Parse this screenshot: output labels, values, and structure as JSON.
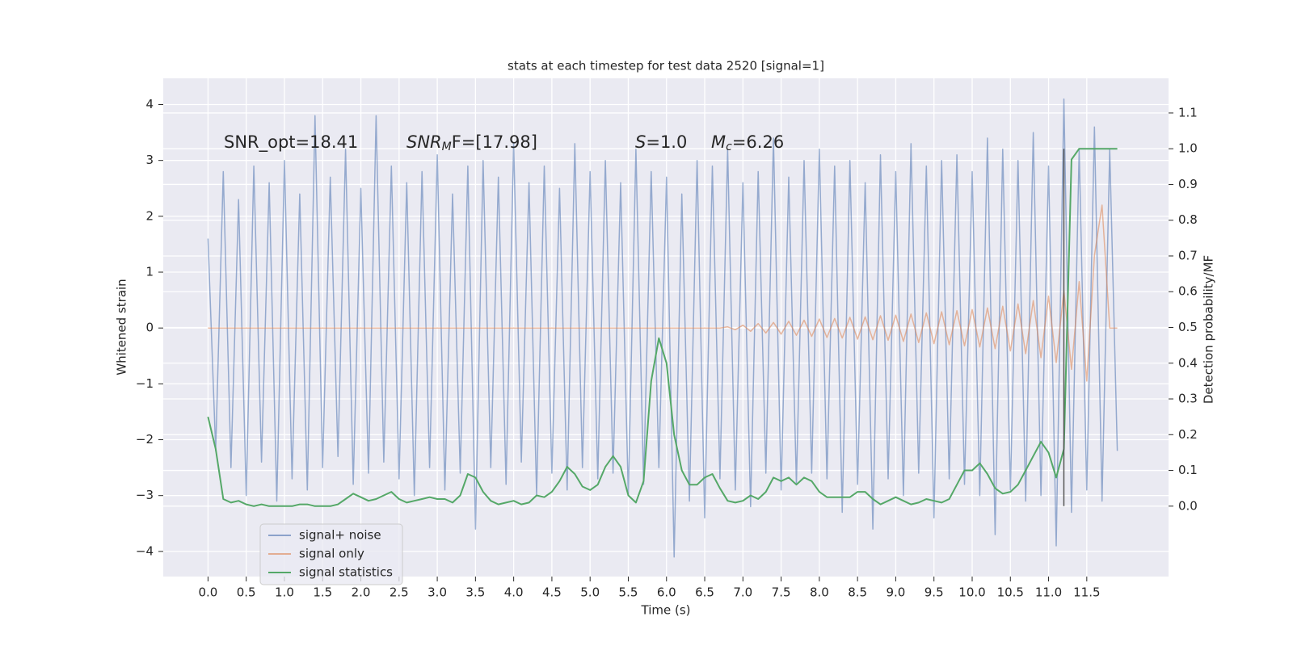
{
  "chart_data": {
    "type": "line",
    "title": "stats at each timestep for test data 2520 [signal=1]",
    "xlabel": "Time (s)",
    "ylabel": "Whitened strain",
    "y2label": "Detection probability/MF",
    "annotations": [
      "SNR_opt=18.41",
      [
        "SNR",
        "M",
        "F=[17.98]"
      ],
      [
        "S",
        "=1.0"
      ],
      [
        "M",
        "c",
        "=6.26"
      ]
    ],
    "xlim": [
      -0.586,
      12.57
    ],
    "ylim": [
      -4.45,
      4.47
    ],
    "y2lim": [
      -0.197,
      1.197
    ],
    "xticks": [
      {
        "value": 0,
        "label": "0.0"
      },
      {
        "value": 0.5,
        "label": "0.5"
      },
      {
        "value": 1,
        "label": "1.0"
      },
      {
        "value": 1.5,
        "label": "1.5"
      },
      {
        "value": 2,
        "label": "2.0"
      },
      {
        "value": 2.5,
        "label": "2.5"
      },
      {
        "value": 3,
        "label": "3.0"
      },
      {
        "value": 3.5,
        "label": "3.5"
      },
      {
        "value": 4,
        "label": "4.0"
      },
      {
        "value": 4.5,
        "label": "4.5"
      },
      {
        "value": 5,
        "label": "5.0"
      },
      {
        "value": 5.5,
        "label": "5.5"
      },
      {
        "value": 6,
        "label": "6.0"
      },
      {
        "value": 6.5,
        "label": "6.5"
      },
      {
        "value": 7,
        "label": "7.0"
      },
      {
        "value": 7.5,
        "label": "7.5"
      },
      {
        "value": 8,
        "label": "8.0"
      },
      {
        "value": 8.5,
        "label": "8.5"
      },
      {
        "value": 9,
        "label": "9.0"
      },
      {
        "value": 9.5,
        "label": "9.5"
      },
      {
        "value": 10,
        "label": "10.0"
      },
      {
        "value": 10.5,
        "label": "10.5"
      },
      {
        "value": 11,
        "label": "11.0"
      },
      {
        "value": 11.5,
        "label": "11.5"
      }
    ],
    "yticks": [
      {
        "value": -4,
        "label": "−4"
      },
      {
        "value": -3,
        "label": "−3"
      },
      {
        "value": -2,
        "label": "−2"
      },
      {
        "value": -1,
        "label": "−1"
      },
      0,
      1,
      2,
      3,
      4
    ],
    "y2ticks": [
      {
        "value": 0,
        "label": "0.0"
      },
      {
        "value": 0.1,
        "label": "0.1"
      },
      {
        "value": 0.2,
        "label": "0.2"
      },
      {
        "value": 0.3,
        "label": "0.3"
      },
      {
        "value": 0.4,
        "label": "0.4"
      },
      {
        "value": 0.5,
        "label": "0.5"
      },
      {
        "value": 0.6,
        "label": "0.6"
      },
      {
        "value": 0.7,
        "label": "0.7"
      },
      {
        "value": 0.8,
        "label": "0.8"
      },
      {
        "value": 0.9,
        "label": "0.9"
      },
      {
        "value": 1,
        "label": "1.0"
      },
      {
        "value": 1.1,
        "label": "1.1"
      }
    ],
    "grid": true,
    "legend": "lower left",
    "vline": {
      "x": 11.2,
      "ymin": 0,
      "ymax": 1,
      "axis": "y2",
      "color": "#555555"
    },
    "x": [
      0,
      0.1,
      0.2,
      0.3,
      0.4,
      0.5,
      0.6,
      0.7,
      0.8,
      0.9,
      1,
      1.1,
      1.2,
      1.3,
      1.4,
      1.5,
      1.6,
      1.7,
      1.8,
      1.9,
      2,
      2.1,
      2.2,
      2.3,
      2.4,
      2.5,
      2.6,
      2.7,
      2.8,
      2.9,
      3,
      3.1,
      3.2,
      3.3,
      3.4,
      3.5,
      3.6,
      3.7,
      3.8,
      3.9,
      4,
      4.1,
      4.2,
      4.3,
      4.4,
      4.5,
      4.6,
      4.7,
      4.8,
      4.9,
      5,
      5.1,
      5.2,
      5.3,
      5.4,
      5.5,
      5.6,
      5.7,
      5.8,
      5.9,
      6,
      6.1,
      6.2,
      6.3,
      6.4,
      6.5,
      6.6,
      6.7,
      6.8,
      6.9,
      7,
      7.1,
      7.2,
      7.3,
      7.4,
      7.5,
      7.6,
      7.7,
      7.8,
      7.9,
      8,
      8.1,
      8.2,
      8.3,
      8.4,
      8.5,
      8.6,
      8.7,
      8.8,
      8.9,
      9,
      9.1,
      9.2,
      9.3,
      9.4,
      9.5,
      9.6,
      9.7,
      9.8,
      9.9,
      10,
      10.1,
      10.2,
      10.3,
      10.4,
      10.5,
      10.6,
      10.7,
      10.8,
      10.9,
      11,
      11.1,
      11.2,
      11.3,
      11.4,
      11.5,
      11.6,
      11.7,
      11.8,
      11.9
    ],
    "series": [
      {
        "name": "signal+ noise",
        "color": "#4c72b0",
        "values": [
          1.6,
          -2.2,
          2.8,
          -2.5,
          2.3,
          -3.0,
          2.9,
          -2.4,
          2.6,
          -3.1,
          3.0,
          -2.7,
          2.4,
          -2.9,
          3.8,
          -2.5,
          2.7,
          -2.3,
          3.2,
          -2.8,
          2.5,
          -2.6,
          3.8,
          -2.4,
          2.9,
          -2.7,
          2.6,
          -3.0,
          2.8,
          -2.5,
          3.1,
          -2.9,
          2.4,
          -2.6,
          2.9,
          -3.6,
          3.0,
          -2.5,
          2.7,
          -2.8,
          3.3,
          -2.4,
          2.6,
          -3.0,
          2.9,
          -2.6,
          2.5,
          -2.9,
          3.3,
          -2.5,
          2.8,
          -2.7,
          3.0,
          -2.6,
          2.6,
          -3.0,
          3.2,
          -2.8,
          2.8,
          -2.5,
          2.7,
          -4.1,
          2.4,
          -3.1,
          3.0,
          -3.4,
          2.9,
          -2.7,
          3.2,
          -2.9,
          2.6,
          -3.2,
          2.8,
          -2.6,
          3.4,
          -2.9,
          2.7,
          -2.8,
          3.0,
          -2.6,
          3.2,
          -2.7,
          2.9,
          -3.3,
          3.0,
          -2.8,
          2.6,
          -3.6,
          3.1,
          -2.7,
          2.8,
          -3.0,
          3.3,
          -2.6,
          2.9,
          -3.4,
          3.0,
          -2.7,
          3.1,
          -2.8,
          2.8,
          -3.0,
          3.4,
          -3.7,
          3.2,
          -2.9,
          3.0,
          -3.1,
          3.5,
          -3.0,
          2.9,
          -3.9,
          4.1,
          -3.3,
          3.2,
          -2.9,
          3.6,
          -3.1,
          3.2,
          -2.2
        ]
      },
      {
        "name": "signal only",
        "color": "#dd8452",
        "values": [
          0,
          0,
          0,
          0,
          0,
          0,
          0,
          0,
          0,
          0,
          0,
          0,
          0,
          0,
          0,
          0,
          0,
          0,
          0,
          0,
          0,
          0,
          0,
          0,
          0,
          0,
          0,
          0,
          0,
          0,
          0,
          0,
          0,
          0,
          0,
          0,
          0,
          0,
          0,
          0,
          0,
          0,
          0,
          0,
          0,
          0,
          0,
          0,
          0,
          0,
          0,
          0,
          0,
          0,
          0,
          0,
          0,
          0,
          0,
          0,
          0,
          0,
          0,
          0,
          0,
          0,
          0,
          0,
          0.02,
          -0.03,
          0.05,
          -0.06,
          0.08,
          -0.09,
          0.1,
          -0.11,
          0.12,
          -0.13,
          0.14,
          -0.15,
          0.16,
          -0.17,
          0.17,
          -0.18,
          0.19,
          -0.2,
          0.2,
          -0.21,
          0.22,
          -0.22,
          0.23,
          -0.24,
          0.25,
          -0.26,
          0.27,
          -0.28,
          0.29,
          -0.3,
          0.31,
          -0.32,
          0.33,
          -0.34,
          0.36,
          -0.37,
          0.39,
          -0.41,
          0.43,
          -0.46,
          0.49,
          -0.53,
          0.57,
          -0.62,
          0.67,
          -0.74,
          0.83,
          -0.95,
          1.3,
          2.2,
          0,
          0
        ]
      },
      {
        "name": "signal statistics",
        "color": "#55a868",
        "axis": "y2",
        "values": [
          0.25,
          0.16,
          0.02,
          0.01,
          0.015,
          0.005,
          0,
          0.005,
          0,
          0,
          0,
          0,
          0.005,
          0.005,
          0,
          0,
          0,
          0.005,
          0.02,
          0.035,
          0.025,
          0.015,
          0.02,
          0.03,
          0.04,
          0.02,
          0.01,
          0.015,
          0.02,
          0.025,
          0.02,
          0.02,
          0.01,
          0.03,
          0.09,
          0.08,
          0.04,
          0.015,
          0.005,
          0.01,
          0.015,
          0.005,
          0.01,
          0.03,
          0.025,
          0.04,
          0.07,
          0.11,
          0.09,
          0.055,
          0.045,
          0.06,
          0.11,
          0.14,
          0.11,
          0.03,
          0.01,
          0.07,
          0.35,
          0.47,
          0.4,
          0.2,
          0.1,
          0.06,
          0.06,
          0.08,
          0.09,
          0.05,
          0.015,
          0.01,
          0.015,
          0.03,
          0.02,
          0.04,
          0.08,
          0.07,
          0.08,
          0.06,
          0.08,
          0.07,
          0.04,
          0.025,
          0.025,
          0.025,
          0.025,
          0.04,
          0.04,
          0.02,
          0.005,
          0.015,
          0.025,
          0.015,
          0.005,
          0.01,
          0.02,
          0.015,
          0.01,
          0.02,
          0.06,
          0.1,
          0.1,
          0.12,
          0.09,
          0.05,
          0.035,
          0.04,
          0.06,
          0.1,
          0.14,
          0.18,
          0.15,
          0.08,
          0.16,
          0.97,
          1,
          1,
          1,
          1,
          1,
          1
        ]
      }
    ]
  }
}
